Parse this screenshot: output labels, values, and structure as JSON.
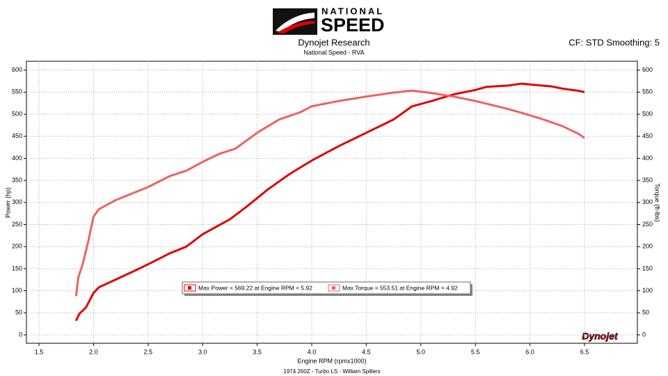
{
  "chart_data": {
    "type": "line",
    "logo_top": "NATIONAL",
    "logo_bottom": "SPEED",
    "title": "Dynojet Research",
    "subtitle": "National Speed - RVA",
    "settings_text": "CF: STD Smoothing: 5",
    "ylabel": "Power (hp)",
    "y2label": "Torque (ft-lbs)",
    "xlabel": "Engine RPM (rpmx1000)",
    "footer": "1974 260Z - Turbo LS - William Spillers",
    "watermark": "Dynojet",
    "grid": true,
    "legend": "center",
    "xlim": [
      1.385,
      6.985
    ],
    "ylim": [
      -19,
      620
    ],
    "y2lim": [
      -19,
      620
    ],
    "xticks": [
      1.5,
      {
        "value": 2,
        "label": "2.0"
      },
      2.5,
      {
        "value": 3,
        "label": "3.0"
      },
      3.5,
      {
        "value": 4,
        "label": "4.0"
      },
      4.5,
      {
        "value": 5,
        "label": "5.0"
      },
      5.5,
      {
        "value": 6,
        "label": "6.0"
      },
      6.5
    ],
    "yticks": [
      0,
      50,
      100,
      150,
      200,
      250,
      300,
      350,
      400,
      450,
      500,
      550,
      600
    ],
    "y2ticks": [
      0,
      50,
      100,
      150,
      200,
      250,
      300,
      350,
      400,
      450,
      500,
      550,
      600
    ],
    "series": [
      {
        "name": "Max Power = 569.22 at Engine RPM = 5.92",
        "color": "#e00000",
        "x": [
          1.84,
          1.87,
          1.93,
          2.0,
          2.05,
          2.2,
          2.4,
          2.5,
          2.7,
          2.85,
          3.0,
          3.25,
          3.4,
          3.6,
          3.8,
          4.0,
          4.25,
          4.5,
          4.75,
          4.92,
          5.1,
          5.3,
          5.5,
          5.6,
          5.8,
          5.92,
          6.2,
          6.3,
          6.45,
          6.5
        ],
        "values": [
          32,
          48,
          62,
          95,
          108,
          125,
          148,
          160,
          185,
          200,
          228,
          262,
          290,
          330,
          365,
          395,
          428,
          458,
          488,
          518,
          530,
          545,
          555,
          562,
          565,
          569.22,
          563,
          558,
          553,
          550
        ]
      },
      {
        "name": "Max Torque = 553.51 at Engine RPM = 4.92",
        "color": "#f06060",
        "axis": "y2",
        "x": [
          1.84,
          1.86,
          1.9,
          1.95,
          2.0,
          2.05,
          2.2,
          2.5,
          2.7,
          2.85,
          3.0,
          3.15,
          3.3,
          3.5,
          3.7,
          3.9,
          4.0,
          4.25,
          4.5,
          4.75,
          4.92,
          5.1,
          5.3,
          5.5,
          5.75,
          5.9,
          6.1,
          6.3,
          6.45,
          6.5
        ],
        "values": [
          88,
          130,
          160,
          210,
          268,
          285,
          305,
          335,
          360,
          372,
          392,
          410,
          422,
          458,
          488,
          505,
          518,
          530,
          540,
          549,
          553.51,
          548,
          540,
          530,
          515,
          505,
          490,
          473,
          455,
          446
        ]
      }
    ]
  }
}
